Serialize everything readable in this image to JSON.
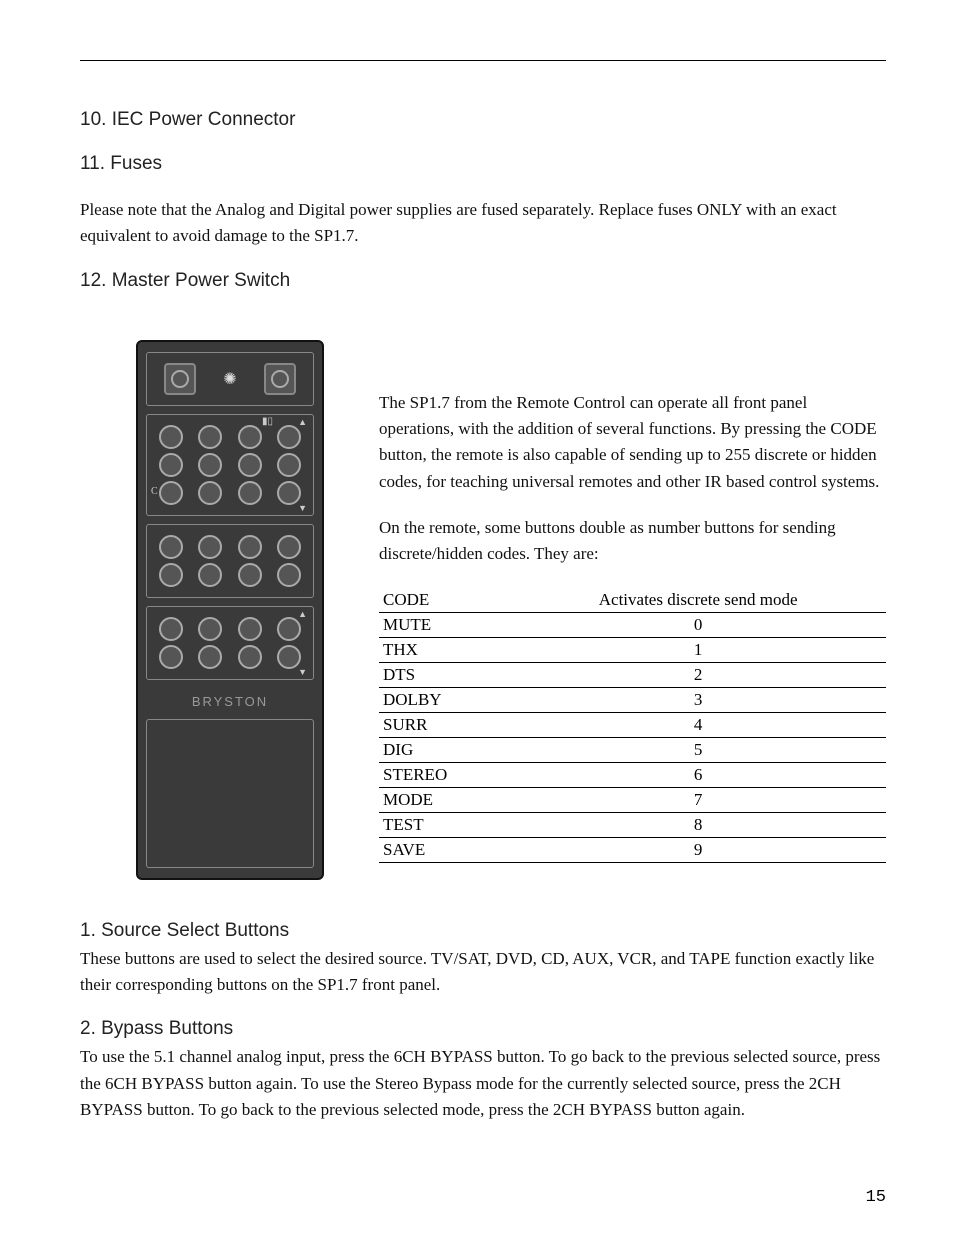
{
  "page_number": "15",
  "sections": {
    "s10": {
      "heading": "10. IEC Power Connector"
    },
    "s11": {
      "heading": "11. Fuses",
      "body": "Please note that the Analog and Digital power supplies are fused separately. Replace fuses ONLY with an exact equivalent to avoid damage to the SP1.7."
    },
    "s12": {
      "heading": "12. Master Power Switch"
    },
    "s1": {
      "heading": "1. Source Select Buttons",
      "body": "These buttons are used to select the desired source.  TV/SAT, DVD, CD, AUX, VCR, and TAPE function exactly like their corresponding buttons on the SP1.7 front panel."
    },
    "s2": {
      "heading": "2. Bypass Buttons",
      "body": "To use the 5.1 channel analog input, press the 6CH BYPASS button.  To go back to the previous selected source, press the 6CH BYPASS button again. To use the Stereo Bypass mode for the currently selected source, press the 2CH BYPASS button.  To go back to the previous selected mode, press the 2CH BYPASS button again."
    }
  },
  "remote_intro": {
    "p1": "The SP1.7 from the Remote Control can operate all front panel operations, with the addition of several functions.  By pressing the CODE button, the remote is also capable of sending up to 255 discrete or hidden codes, for teaching universal remotes and other IR based control systems.",
    "p2": "On the remote, some buttons double as number buttons for sending discrete/hidden codes.  They are:"
  },
  "code_table": {
    "header": {
      "label": "CODE",
      "value": "Activates discrete send mode"
    },
    "rows": [
      {
        "label": "MUTE",
        "value": "0"
      },
      {
        "label": "THX",
        "value": "1"
      },
      {
        "label": "DTS",
        "value": "2"
      },
      {
        "label": "DOLBY",
        "value": "3"
      },
      {
        "label": "SURR",
        "value": "4"
      },
      {
        "label": "DIG",
        "value": "5"
      },
      {
        "label": "STEREO",
        "value": "6"
      },
      {
        "label": "MODE",
        "value": "7"
      },
      {
        "label": "TEST",
        "value": "8"
      },
      {
        "label": "SAVE",
        "value": "9"
      }
    ]
  },
  "remote": {
    "brand": "BRYSTON",
    "colors": {
      "body": "#3a3a3a",
      "border": "#111111",
      "button_ring": "#aaaaaa",
      "button_fill": "#555555",
      "glyph": "#cccccc"
    }
  }
}
